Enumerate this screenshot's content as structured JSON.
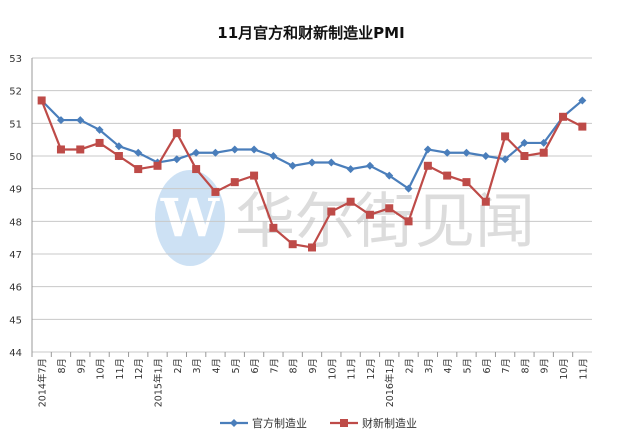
{
  "chart_data": {
    "type": "line",
    "title": "11月官方和财新制造业PMI",
    "xlabel": "",
    "ylabel": "",
    "ylim": [
      44,
      53
    ],
    "yticks": [
      44,
      45,
      46,
      47,
      48,
      49,
      50,
      51,
      52,
      53
    ],
    "grid": true,
    "legend_position": "bottom",
    "categories": [
      "2014年7月",
      "8月",
      "9月",
      "10月",
      "11月",
      "12月",
      "2015年1月",
      "2月",
      "3月",
      "4月",
      "5月",
      "6月",
      "7月",
      "8月",
      "9月",
      "10月",
      "11月",
      "12月",
      "2016年1月",
      "2月",
      "3月",
      "4月",
      "5月",
      "6月",
      "7月",
      "8月",
      "9月",
      "10月",
      "11月"
    ],
    "series": [
      {
        "name": "官方制造业",
        "color": "#4a7ebb",
        "marker": "diamond",
        "values": [
          51.7,
          51.1,
          51.1,
          50.8,
          50.3,
          50.1,
          49.8,
          49.9,
          50.1,
          50.1,
          50.2,
          50.2,
          50.0,
          49.7,
          49.8,
          49.8,
          49.6,
          49.7,
          49.4,
          49.0,
          50.2,
          50.1,
          50.1,
          50.0,
          49.9,
          50.4,
          50.4,
          51.2,
          51.7
        ]
      },
      {
        "name": "财新制造业",
        "color": "#be4b48",
        "marker": "square",
        "values": [
          51.7,
          50.2,
          50.2,
          50.4,
          50.0,
          49.6,
          49.7,
          50.7,
          49.6,
          48.9,
          49.2,
          49.4,
          47.8,
          47.3,
          47.2,
          48.3,
          48.6,
          48.2,
          48.4,
          48.0,
          49.7,
          49.4,
          49.2,
          48.6,
          50.6,
          50.0,
          50.1,
          51.2,
          50.9
        ]
      }
    ]
  },
  "watermark": "华尔街见闻"
}
